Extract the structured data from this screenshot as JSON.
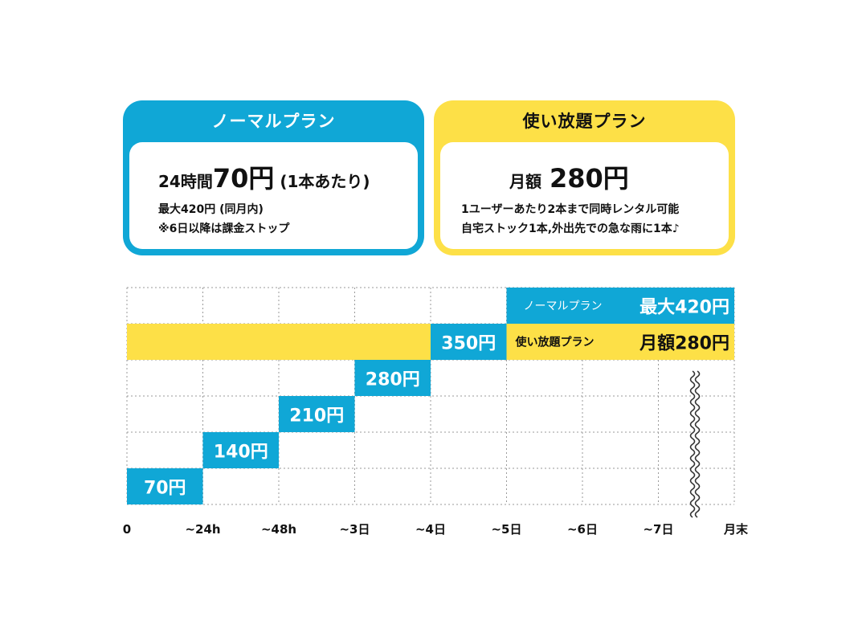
{
  "normal_card": {
    "title": "ノーマルプラン",
    "price_prefix": "24時間",
    "price_main": "70円",
    "price_suffix": " (1本あたり)",
    "note1": "最大420円 (同月内)",
    "note2": "※6日以降は課金ストップ",
    "color": "#10a7d6"
  },
  "unlimited_card": {
    "title": "使い放題プラン",
    "price_prefix": "月額",
    "price_main": "280円",
    "note1": "1ユーザーあたり2本まで同時レンタル可能",
    "note2": "自宅ストック1本,外出先での急な雨に1本♪",
    "color": "#fde047"
  },
  "chart_data": {
    "type": "bar",
    "x_ticks": [
      "0",
      "~24h",
      "~48h",
      "~3日",
      "~4日",
      "~5日",
      "~6日",
      "~7日",
      "月末"
    ],
    "normal_steps": [
      {
        "label": "70円",
        "value": 70
      },
      {
        "label": "140円",
        "value": 140
      },
      {
        "label": "210円",
        "value": 210
      },
      {
        "label": "280円",
        "value": 280
      },
      {
        "label": "350円",
        "value": 350
      }
    ],
    "normal_cap": {
      "plan": "ノーマルプラン",
      "label": "最大420円",
      "value": 420
    },
    "unlimited": {
      "plan": "使い放題プラン",
      "label": "月額280円",
      "value": 280
    },
    "ylim": [
      0,
      420
    ]
  }
}
